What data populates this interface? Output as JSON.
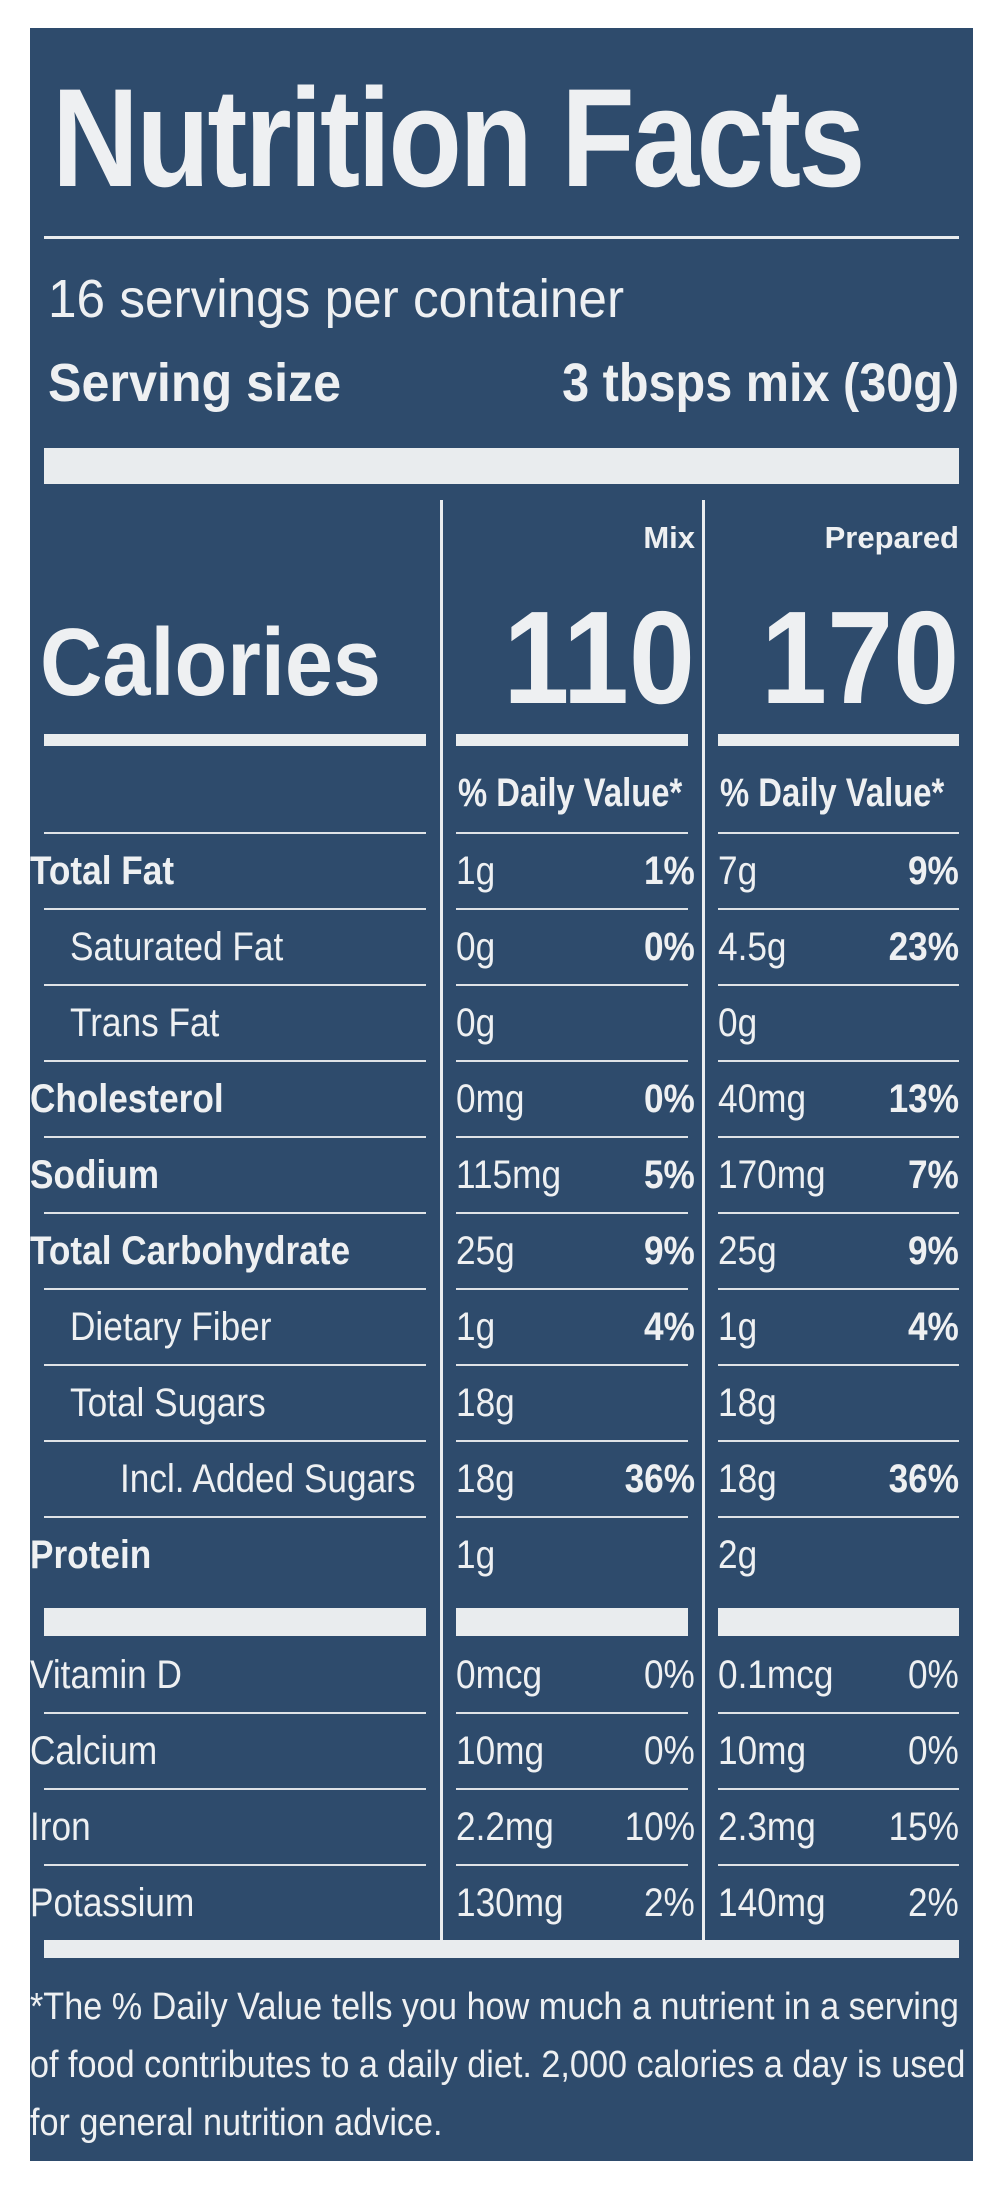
{
  "label": {
    "title": "Nutrition Facts",
    "servings_per_container": "16 servings per container",
    "serving_size_label": "Serving size",
    "serving_size_value": "3 tbsps mix (30g)",
    "column_headers": [
      "Mix",
      "Prepared"
    ],
    "calories_label": "Calories",
    "calories": [
      "110",
      "170"
    ],
    "daily_value_header": "% Daily Value*",
    "nutrients": [
      {
        "name": "Total Fat",
        "mix_amount": "1g",
        "mix_dv": "1%",
        "prep_amount": "7g",
        "prep_dv": "9%"
      },
      {
        "name": "Saturated Fat",
        "mix_amount": "0g",
        "mix_dv": "0%",
        "prep_amount": "4.5g",
        "prep_dv": "23%"
      },
      {
        "name": "Trans Fat",
        "mix_amount": "0g",
        "mix_dv": "",
        "prep_amount": "0g",
        "prep_dv": ""
      },
      {
        "name": "Cholesterol",
        "mix_amount": "0mg",
        "mix_dv": "0%",
        "prep_amount": "40mg",
        "prep_dv": "13%"
      },
      {
        "name": "Sodium",
        "mix_amount": "115mg",
        "mix_dv": "5%",
        "prep_amount": "170mg",
        "prep_dv": "7%"
      },
      {
        "name": "Total Carbohydrate",
        "mix_amount": "25g",
        "mix_dv": "9%",
        "prep_amount": "25g",
        "prep_dv": "9%"
      },
      {
        "name": "Dietary Fiber",
        "mix_amount": "1g",
        "mix_dv": "4%",
        "prep_amount": "1g",
        "prep_dv": "4%"
      },
      {
        "name": "Total Sugars",
        "mix_amount": "18g",
        "mix_dv": "",
        "prep_amount": "18g",
        "prep_dv": ""
      },
      {
        "name": "Incl. Added Sugars",
        "mix_amount": "18g",
        "mix_dv": "36%",
        "prep_amount": "18g",
        "prep_dv": "36%"
      },
      {
        "name": "Protein",
        "mix_amount": "1g",
        "mix_dv": "",
        "prep_amount": "2g",
        "prep_dv": ""
      }
    ],
    "vitamins": [
      {
        "name": "Vitamin D",
        "mix_amount": "0mcg",
        "mix_dv": "0%",
        "prep_amount": "0.1mcg",
        "prep_dv": "0%"
      },
      {
        "name": "Calcium",
        "mix_amount": "10mg",
        "mix_dv": "0%",
        "prep_amount": "10mg",
        "prep_dv": "0%"
      },
      {
        "name": "Iron",
        "mix_amount": "2.2mg",
        "mix_dv": "10%",
        "prep_amount": "2.3mg",
        "prep_dv": "15%"
      },
      {
        "name": "Potassium",
        "mix_amount": "130mg",
        "mix_dv": "2%",
        "prep_amount": "140mg",
        "prep_dv": "2%"
      }
    ],
    "footnote_lines": [
      "*The % Daily Value tells you how much a nutrient in a serving",
      "of food contributes to a daily diet. 2,000 calories a day is used",
      "for general nutrition advice."
    ]
  },
  "colors": {
    "panel_background": "#2e4b6c",
    "text": "#eef0f2"
  }
}
